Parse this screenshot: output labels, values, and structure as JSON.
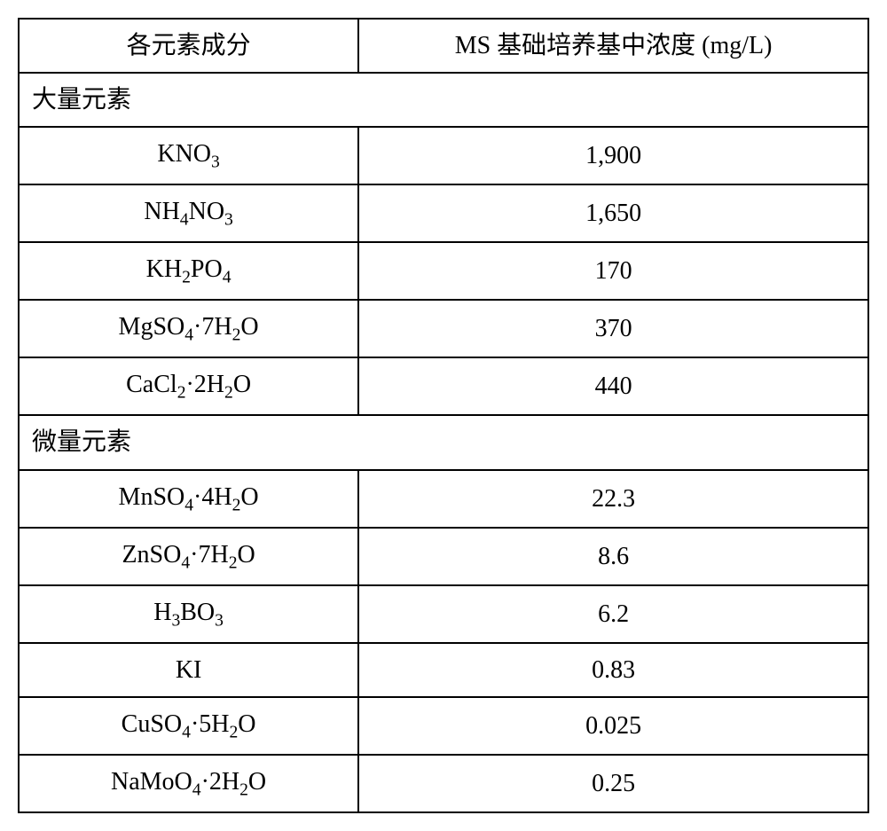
{
  "table": {
    "type": "table",
    "background_color": "#ffffff",
    "border_color": "#000000",
    "border_width": 2,
    "font_family": "Times New Roman, SimSun, serif",
    "header_fontsize": 28,
    "cell_fontsize": 28,
    "column_widths": [
      "40%",
      "60%"
    ],
    "columns": [
      "各元素成分",
      "MS 基础培养基中浓度  (mg/L)"
    ],
    "sections": [
      {
        "title": "大量元素",
        "rows": [
          {
            "compound_html": "KNO<sub>3</sub>",
            "value": "1,900"
          },
          {
            "compound_html": "NH<sub>4</sub>NO<sub>3</sub>",
            "value": "1,650"
          },
          {
            "compound_html": "KH<sub>2</sub>PO<sub>4</sub>",
            "value": "170"
          },
          {
            "compound_html": "MgSO<sub>4</sub>·7H<sub>2</sub>O",
            "value": "370"
          },
          {
            "compound_html": "CaCl<sub>2</sub>·2H<sub>2</sub>O",
            "value": "440"
          }
        ]
      },
      {
        "title": "微量元素",
        "rows": [
          {
            "compound_html": "MnSO<sub>4</sub>·4H<sub>2</sub>O",
            "value": "22.3"
          },
          {
            "compound_html": "ZnSO<sub>4</sub>·7H<sub>2</sub>O",
            "value": "8.6"
          },
          {
            "compound_html": "H<sub>3</sub>BO<sub>3</sub>",
            "value": "6.2"
          },
          {
            "compound_html": "KI",
            "value": "0.83"
          },
          {
            "compound_html": "CuSO<sub>4</sub>·5H<sub>2</sub>O",
            "value": "0.025"
          },
          {
            "compound_html": "NaMoO<sub>4</sub>·2H<sub>2</sub>O",
            "value": "0.25"
          }
        ]
      }
    ]
  }
}
